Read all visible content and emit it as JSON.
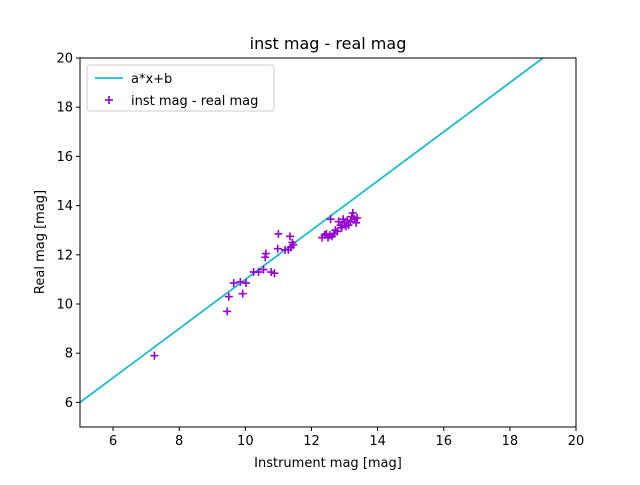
{
  "chart_data": {
    "type": "scatter",
    "title": "inst mag - real mag",
    "xlabel": "Instrument mag [mag]",
    "ylabel": "Real mag [mag]",
    "xlim": [
      5,
      20
    ],
    "ylim": [
      5,
      20
    ],
    "xticks": [
      6,
      8,
      10,
      12,
      14,
      16,
      18,
      20
    ],
    "yticks": [
      6,
      8,
      10,
      12,
      14,
      16,
      18,
      20
    ],
    "grid": false,
    "legend_position": "upper-left",
    "series": [
      {
        "name": "a*x+b",
        "kind": "line",
        "color": "#17becf",
        "x": [
          5,
          19.0
        ],
        "y": [
          6.0,
          20.0
        ]
      },
      {
        "name": "inst mag - real mag",
        "kind": "scatter",
        "marker": "plus",
        "color": "#9400d3",
        "points": [
          [
            7.25,
            7.9
          ],
          [
            9.45,
            9.7
          ],
          [
            9.5,
            10.3
          ],
          [
            9.65,
            10.85
          ],
          [
            9.85,
            10.9
          ],
          [
            9.92,
            10.42
          ],
          [
            10.02,
            10.85
          ],
          [
            10.25,
            11.3
          ],
          [
            10.4,
            11.3
          ],
          [
            10.55,
            11.4
          ],
          [
            10.6,
            11.9
          ],
          [
            10.62,
            12.05
          ],
          [
            10.78,
            11.3
          ],
          [
            10.88,
            11.25
          ],
          [
            10.98,
            12.25
          ],
          [
            11.0,
            12.85
          ],
          [
            11.2,
            12.2
          ],
          [
            11.3,
            12.2
          ],
          [
            11.35,
            12.75
          ],
          [
            11.38,
            12.3
          ],
          [
            11.42,
            12.5
          ],
          [
            11.45,
            12.4
          ],
          [
            12.32,
            12.7
          ],
          [
            12.4,
            12.8
          ],
          [
            12.45,
            12.85
          ],
          [
            12.5,
            12.7
          ],
          [
            12.55,
            12.8
          ],
          [
            12.58,
            13.45
          ],
          [
            12.62,
            12.75
          ],
          [
            12.68,
            12.85
          ],
          [
            12.72,
            13.0
          ],
          [
            12.78,
            12.95
          ],
          [
            12.82,
            13.35
          ],
          [
            12.88,
            13.2
          ],
          [
            12.92,
            13.1
          ],
          [
            12.96,
            13.45
          ],
          [
            13.0,
            13.3
          ],
          [
            13.04,
            13.15
          ],
          [
            13.08,
            13.4
          ],
          [
            13.12,
            13.2
          ],
          [
            13.18,
            13.35
          ],
          [
            13.22,
            13.55
          ],
          [
            13.25,
            13.7
          ],
          [
            13.3,
            13.45
          ],
          [
            13.35,
            13.3
          ],
          [
            13.38,
            13.5
          ]
        ]
      }
    ]
  }
}
